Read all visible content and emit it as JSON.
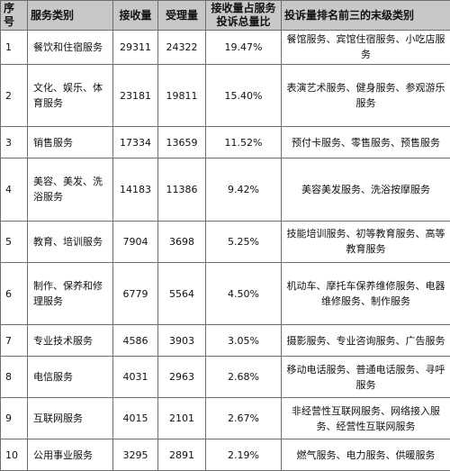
{
  "table": {
    "headers": {
      "idx": "序号",
      "category": "服务类别",
      "received": "接收量",
      "accepted": "受理量",
      "share": "接收量占服务投诉总量比",
      "subcategories": "投诉量排名前三的末级类别"
    },
    "rows": [
      {
        "idx": "1",
        "category": "餐饮和住宿服务",
        "received": "29311",
        "accepted": "24322",
        "share": "19.47%",
        "subcategories": "餐馆服务、宾馆住宿服务、小吃店服务"
      },
      {
        "idx": "2",
        "category": "文化、娱乐、体育服务",
        "received": "23181",
        "accepted": "19811",
        "share": "15.40%",
        "subcategories": "表演艺术服务、健身服务、参观游乐服务"
      },
      {
        "idx": "3",
        "category": "销售服务",
        "received": "17334",
        "accepted": "13659",
        "share": "11.52%",
        "subcategories": "预付卡服务、零售服务、预售服务"
      },
      {
        "idx": "4",
        "category": "美容、美发、洗浴服务",
        "received": "14183",
        "accepted": "11386",
        "share": "9.42%",
        "subcategories": "美容美发服务、洗浴按摩服务"
      },
      {
        "idx": "5",
        "category": "教育、培训服务",
        "received": "7904",
        "accepted": "3698",
        "share": "5.25%",
        "subcategories": "技能培训服务、初等教育服务、高等教育服务"
      },
      {
        "idx": "6",
        "category": "制作、保养和修理服务",
        "received": "6779",
        "accepted": "5564",
        "share": "4.50%",
        "subcategories": "机动车、摩托车保养维修服务、电器维修服务、制作服务"
      },
      {
        "idx": "7",
        "category": "专业技术服务",
        "received": "4586",
        "accepted": "3903",
        "share": "3.05%",
        "subcategories": "摄影服务、专业咨询服务、广告服务"
      },
      {
        "idx": "8",
        "category": "电信服务",
        "received": "4031",
        "accepted": "2963",
        "share": "2.68%",
        "subcategories": "移动电话服务、普通电话服务、寻呼服务"
      },
      {
        "idx": "9",
        "category": "互联网服务",
        "received": "4015",
        "accepted": "2101",
        "share": "2.67%",
        "subcategories": "非经营性互联网服务、网络接入服务、经营性互联网服务"
      },
      {
        "idx": "10",
        "category": "公用事业服务",
        "received": "3295",
        "accepted": "2891",
        "share": "2.19%",
        "subcategories": "燃气服务、电力服务、供暖服务"
      }
    ]
  }
}
